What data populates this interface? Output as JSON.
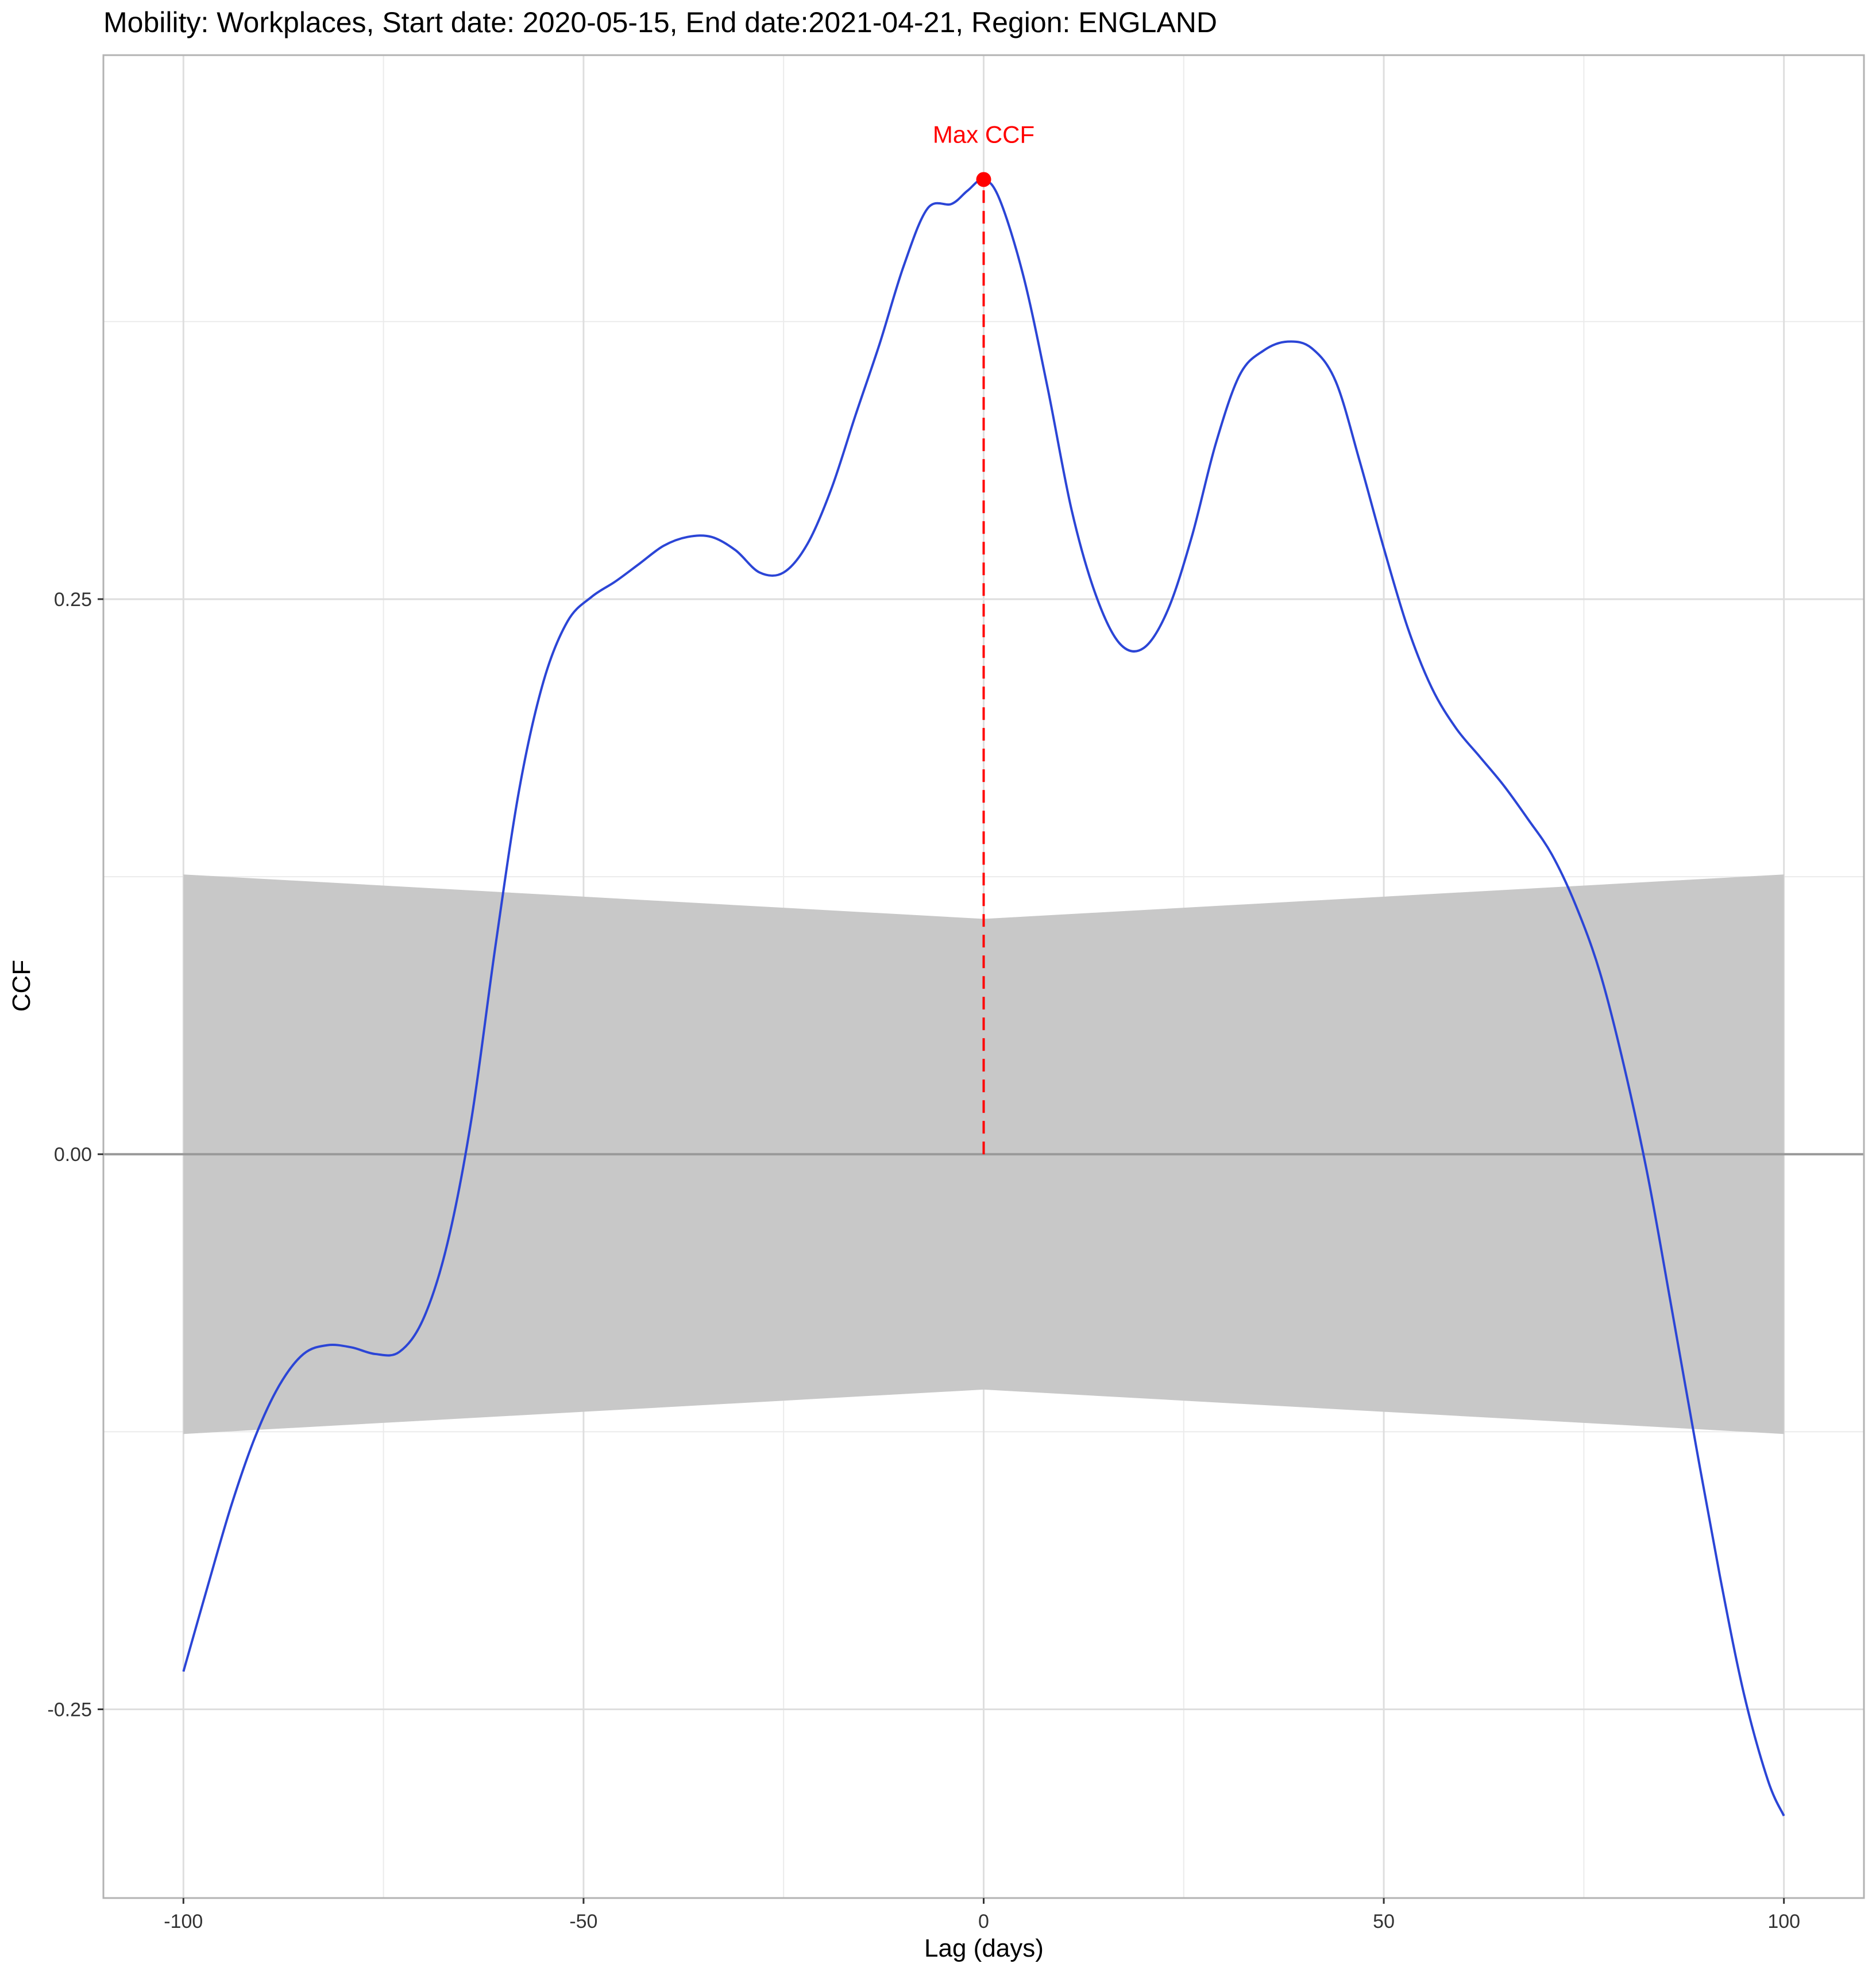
{
  "chart_data": {
    "type": "line",
    "title": "Mobility: Workplaces, Start date: 2020-05-15, End date:2021-04-21, Region: ENGLAND",
    "xlabel": "Lag (days)",
    "ylabel": "CCF",
    "xlim": [
      -110,
      110
    ],
    "ylim": [
      -0.335,
      0.495
    ],
    "x_ticks": [
      -100,
      -50,
      0,
      50,
      100
    ],
    "x_tick_labels": [
      "-100",
      "-50",
      "0",
      "50",
      "100"
    ],
    "y_ticks": [
      -0.25,
      0,
      0.25
    ],
    "y_tick_labels": [
      "-0.25",
      "0.00",
      "0.25"
    ],
    "grid": true,
    "zero_line": true,
    "series": [
      {
        "color": "#2b45d6",
        "points": [
          [
            -100,
            -0.233
          ],
          [
            -97,
            -0.195
          ],
          [
            -94,
            -0.158
          ],
          [
            -91,
            -0.127
          ],
          [
            -88,
            -0.104
          ],
          [
            -85,
            -0.09
          ],
          [
            -82,
            -0.086
          ],
          [
            -79,
            -0.087
          ],
          [
            -76,
            -0.09
          ],
          [
            -73,
            -0.089
          ],
          [
            -70,
            -0.074
          ],
          [
            -67,
            -0.04
          ],
          [
            -64,
            0.016
          ],
          [
            -61,
            0.094
          ],
          [
            -58,
            0.165
          ],
          [
            -55,
            0.213
          ],
          [
            -52,
            0.24
          ],
          [
            -49,
            0.251
          ],
          [
            -46,
            0.258
          ],
          [
            -43,
            0.266
          ],
          [
            -40,
            0.274
          ],
          [
            -37,
            0.278
          ],
          [
            -34,
            0.278
          ],
          [
            -31,
            0.272
          ],
          [
            -28,
            0.262
          ],
          [
            -25,
            0.262
          ],
          [
            -22,
            0.275
          ],
          [
            -19,
            0.3
          ],
          [
            -16,
            0.333
          ],
          [
            -13,
            0.365
          ],
          [
            -10,
            0.4
          ],
          [
            -7,
            0.426
          ],
          [
            -4,
            0.428
          ],
          [
            -2,
            0.434
          ],
          [
            0,
            0.439
          ],
          [
            2,
            0.43
          ],
          [
            5,
            0.395
          ],
          [
            8,
            0.345
          ],
          [
            11,
            0.29
          ],
          [
            14,
            0.252
          ],
          [
            17,
            0.23
          ],
          [
            20,
            0.228
          ],
          [
            23,
            0.245
          ],
          [
            26,
            0.278
          ],
          [
            29,
            0.32
          ],
          [
            32,
            0.351
          ],
          [
            35,
            0.362
          ],
          [
            38,
            0.366
          ],
          [
            41,
            0.363
          ],
          [
            44,
            0.348
          ],
          [
            47,
            0.312
          ],
          [
            50,
            0.273
          ],
          [
            53,
            0.237
          ],
          [
            56,
            0.21
          ],
          [
            59,
            0.192
          ],
          [
            62,
            0.179
          ],
          [
            65,
            0.166
          ],
          [
            68,
            0.151
          ],
          [
            71,
            0.135
          ],
          [
            74,
            0.112
          ],
          [
            77,
            0.082
          ],
          [
            80,
            0.04
          ],
          [
            83,
            -0.01
          ],
          [
            86,
            -0.07
          ],
          [
            89,
            -0.131
          ],
          [
            92,
            -0.19
          ],
          [
            95,
            -0.243
          ],
          [
            98,
            -0.282
          ],
          [
            100,
            -0.298
          ]
        ]
      }
    ],
    "confidence_band": {
      "color": "#c8c8c8",
      "x": [
        -100,
        0,
        100
      ],
      "upper": [
        0.126,
        0.106,
        0.126
      ],
      "lower": [
        -0.126,
        -0.106,
        -0.126
      ]
    },
    "annotation": {
      "text": "Max CCF",
      "x": 0,
      "y": 0.439,
      "color": "#ff0000"
    }
  }
}
